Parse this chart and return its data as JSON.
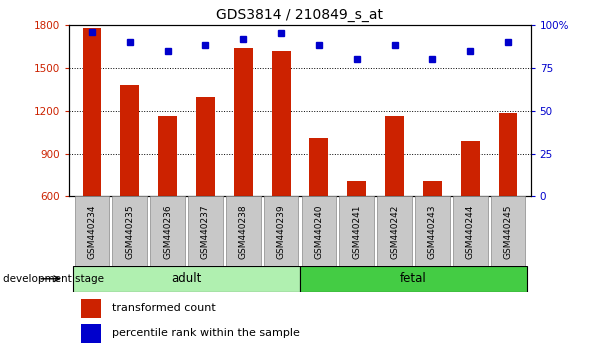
{
  "title": "GDS3814 / 210849_s_at",
  "categories": [
    "GSM440234",
    "GSM440235",
    "GSM440236",
    "GSM440237",
    "GSM440238",
    "GSM440239",
    "GSM440240",
    "GSM440241",
    "GSM440242",
    "GSM440243",
    "GSM440244",
    "GSM440245"
  ],
  "bar_values": [
    1780,
    1380,
    1165,
    1295,
    1640,
    1620,
    1010,
    710,
    1165,
    710,
    990,
    1185
  ],
  "percentile_values": [
    96,
    90,
    85,
    88,
    92,
    95,
    88,
    80,
    88,
    80,
    85,
    90
  ],
  "bar_color": "#cc2200",
  "dot_color": "#0000cc",
  "ylim_left": [
    600,
    1800
  ],
  "ylim_right": [
    0,
    100
  ],
  "yticks_left": [
    600,
    900,
    1200,
    1500,
    1800
  ],
  "yticks_right": [
    0,
    25,
    50,
    75,
    100
  ],
  "ytick_right_labels": [
    "0",
    "25",
    "50",
    "75",
    "100%"
  ],
  "grid_values": [
    900,
    1200,
    1500
  ],
  "adult_count": 6,
  "fetal_count": 6,
  "adult_label": "adult",
  "fetal_label": "fetal",
  "dev_stage_label": "development stage",
  "legend_bar_label": "transformed count",
  "legend_dot_label": "percentile rank within the sample",
  "background_color": "#ffffff",
  "adult_color": "#b0f0b0",
  "fetal_color": "#44cc44",
  "gray_box_color": "#c8c8c8",
  "bar_width": 0.5,
  "title_fontsize": 10,
  "tick_fontsize": 7.5,
  "label_fontsize": 8
}
